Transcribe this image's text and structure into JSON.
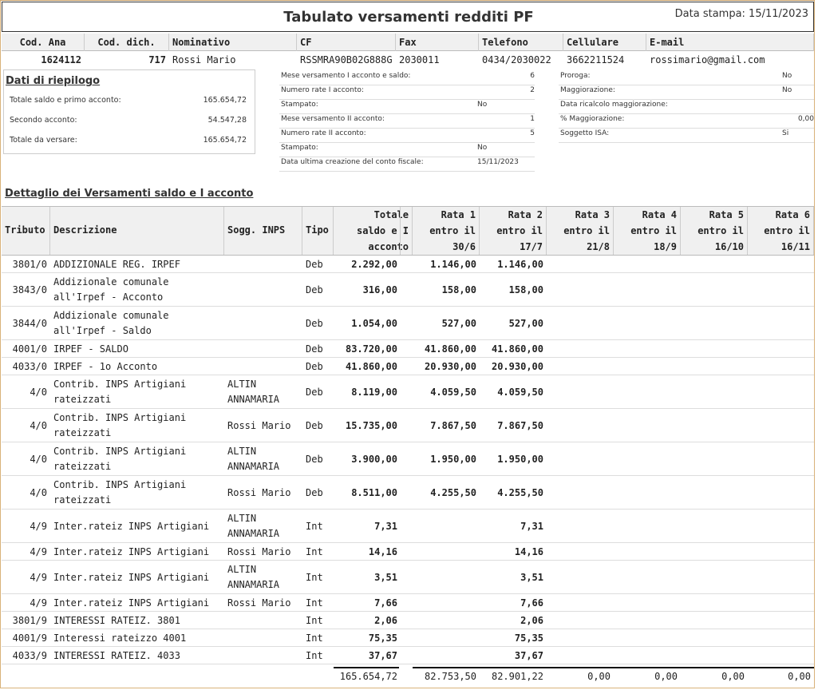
{
  "header": {
    "title": "Tabulato versamenti redditi PF",
    "print_date": "Data stampa: 15/11/2023"
  },
  "anagrafica": {
    "columns": [
      "Cod. Ana",
      "Cod. dich.",
      "Nominativo",
      "CF",
      "Fax",
      "Telefono",
      "Cellulare",
      "E-mail"
    ],
    "values": [
      "1624112",
      "717",
      "Rossi Mario",
      "RSSMRA90B02G888G",
      "2030011",
      "0434/2030022",
      "3662211524",
      "rossimario@gmail.com"
    ]
  },
  "summary": {
    "title": "Dati di riepilogo",
    "items": [
      {
        "label": "Totale saldo e primo acconto:",
        "value": "165.654,72"
      },
      {
        "label": "Secondo acconto:",
        "value": "54.547,28"
      },
      {
        "label": "Totale da versare:",
        "value": "165.654,72"
      }
    ]
  },
  "info_mid": [
    {
      "label": "Mese versamento I acconto e saldo:",
      "value": "6"
    },
    {
      "label": "Numero rate I acconto:",
      "value": "2"
    },
    {
      "label": "Stampato:",
      "value": "No"
    },
    {
      "label": "Mese versamento II acconto:",
      "value": "1"
    },
    {
      "label": "Numero rate II acconto:",
      "value": "5"
    },
    {
      "label": "Stampato:",
      "value": "No"
    },
    {
      "label": "Data ultima creazione del conto fiscale:",
      "value": "15/11/2023"
    }
  ],
  "info_right": [
    {
      "label": "Proroga:",
      "value": "No"
    },
    {
      "label": "Maggiorazione:",
      "value": "No"
    },
    {
      "label": "Data ricalcolo maggiorazione:",
      "value": ""
    },
    {
      "label": "% Maggiorazione:",
      "value": "0,00"
    },
    {
      "label": "Soggetto ISA:",
      "value": "Si"
    }
  ],
  "detail": {
    "title": "Dettaglio dei Versamenti saldo e I acconto",
    "columns": [
      {
        "lines": [
          "Tributo"
        ]
      },
      {
        "lines": [
          "Descrizione"
        ]
      },
      {
        "lines": [
          "Sogg. INPS"
        ]
      },
      {
        "lines": [
          "Tipo"
        ]
      },
      {
        "lines": [
          "Totale",
          "saldo e I",
          "acconto"
        ]
      },
      {
        "lines": [
          "Rata 1",
          "entro il",
          "30/6"
        ]
      },
      {
        "lines": [
          "Rata 2",
          "entro il",
          "17/7"
        ]
      },
      {
        "lines": [
          "Rata 3",
          "entro il",
          "21/8"
        ]
      },
      {
        "lines": [
          "Rata 4",
          "entro il",
          "18/9"
        ]
      },
      {
        "lines": [
          "Rata 5",
          "entro il",
          "16/10"
        ]
      },
      {
        "lines": [
          "Rata 6",
          "entro il",
          "16/11"
        ]
      }
    ],
    "rows": [
      {
        "tributo": "3801/0",
        "desc": [
          "ADDIZIONALE REG. IRPEF"
        ],
        "sogg": [],
        "tipo": "Deb",
        "totale": "2.292,00",
        "r1": "1.146,00",
        "r2": "1.146,00"
      },
      {
        "tributo": "3843/0",
        "desc": [
          "Addizionale comunale",
          "all'Irpef - Acconto"
        ],
        "sogg": [],
        "tipo": "Deb",
        "totale": "316,00",
        "r1": "158,00",
        "r2": "158,00"
      },
      {
        "tributo": "3844/0",
        "desc": [
          "Addizionale comunale",
          "all'Irpef - Saldo"
        ],
        "sogg": [],
        "tipo": "Deb",
        "totale": "1.054,00",
        "r1": "527,00",
        "r2": "527,00"
      },
      {
        "tributo": "4001/0",
        "desc": [
          "IRPEF - SALDO"
        ],
        "sogg": [],
        "tipo": "Deb",
        "totale": "83.720,00",
        "r1": "41.860,00",
        "r2": "41.860,00"
      },
      {
        "tributo": "4033/0",
        "desc": [
          "IRPEF - 1o Acconto"
        ],
        "sogg": [],
        "tipo": "Deb",
        "totale": "41.860,00",
        "r1": "20.930,00",
        "r2": "20.930,00"
      },
      {
        "tributo": "4/0",
        "desc": [
          "Contrib. INPS Artigiani",
          "rateizzati"
        ],
        "sogg": [
          "ALTIN",
          "ANNAMARIA"
        ],
        "tipo": "Deb",
        "totale": "8.119,00",
        "r1": "4.059,50",
        "r2": "4.059,50"
      },
      {
        "tributo": "4/0",
        "desc": [
          "Contrib. INPS Artigiani",
          "rateizzati"
        ],
        "sogg": [
          "Rossi Mario"
        ],
        "tipo": "Deb",
        "totale": "15.735,00",
        "r1": "7.867,50",
        "r2": "7.867,50"
      },
      {
        "tributo": "4/0",
        "desc": [
          "Contrib. INPS Artigiani",
          "rateizzati"
        ],
        "sogg": [
          "ALTIN",
          "ANNAMARIA"
        ],
        "tipo": "Deb",
        "totale": "3.900,00",
        "r1": "1.950,00",
        "r2": "1.950,00"
      },
      {
        "tributo": "4/0",
        "desc": [
          "Contrib. INPS Artigiani",
          "rateizzati"
        ],
        "sogg": [
          "Rossi Mario"
        ],
        "tipo": "Deb",
        "totale": "8.511,00",
        "r1": "4.255,50",
        "r2": "4.255,50"
      },
      {
        "tributo": "4/9",
        "desc": [
          "Inter.rateiz INPS Artigiani"
        ],
        "sogg": [
          "ALTIN",
          "ANNAMARIA"
        ],
        "tipo": "Int",
        "totale": "7,31",
        "r1": "",
        "r2": "7,31"
      },
      {
        "tributo": "4/9",
        "desc": [
          "Inter.rateiz INPS Artigiani"
        ],
        "sogg": [
          "Rossi Mario"
        ],
        "tipo": "Int",
        "totale": "14,16",
        "r1": "",
        "r2": "14,16"
      },
      {
        "tributo": "4/9",
        "desc": [
          "Inter.rateiz INPS Artigiani"
        ],
        "sogg": [
          "ALTIN",
          "ANNAMARIA"
        ],
        "tipo": "Int",
        "totale": "3,51",
        "r1": "",
        "r2": "3,51"
      },
      {
        "tributo": "4/9",
        "desc": [
          "Inter.rateiz INPS Artigiani"
        ],
        "sogg": [
          "Rossi Mario"
        ],
        "tipo": "Int",
        "totale": "7,66",
        "r1": "",
        "r2": "7,66"
      },
      {
        "tributo": "3801/9",
        "desc": [
          "INTERESSI RATEIZ. 3801"
        ],
        "sogg": [],
        "tipo": "Int",
        "totale": "2,06",
        "r1": "",
        "r2": "2,06"
      },
      {
        "tributo": "4001/9",
        "desc": [
          "Interessi rateizzo 4001"
        ],
        "sogg": [],
        "tipo": "Int",
        "totale": "75,35",
        "r1": "",
        "r2": "75,35"
      },
      {
        "tributo": "4033/9",
        "desc": [
          "INTERESSI RATEIZ. 4033"
        ],
        "sogg": [],
        "tipo": "Int",
        "totale": "37,67",
        "r1": "",
        "r2": "37,67"
      }
    ],
    "totals": {
      "totale": "165.654,72",
      "r1": "82.753,50",
      "r2": "82.901,22",
      "r3": "0,00",
      "r4": "0,00",
      "r5": "0,00",
      "r6": "0,00"
    }
  }
}
